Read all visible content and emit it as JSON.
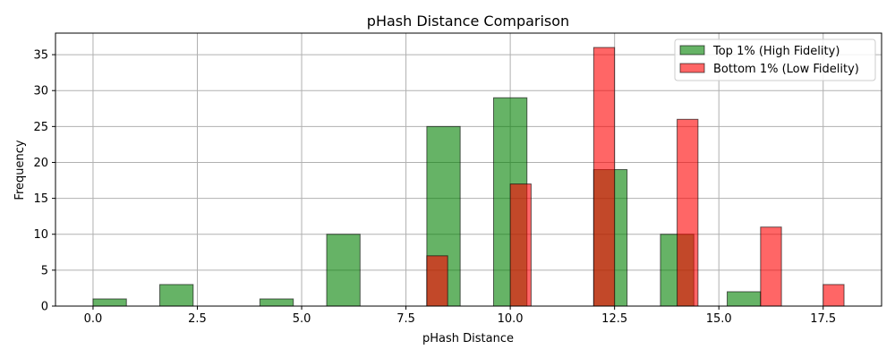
{
  "chart_data": {
    "type": "bar",
    "title": "pHash Distance Comparison",
    "xlabel": "pHash Distance",
    "ylabel": "Frequency",
    "xlim": [
      -0.9,
      18.9
    ],
    "ylim": [
      0,
      38
    ],
    "x_ticks": [
      0.0,
      2.5,
      5.0,
      7.5,
      10.0,
      12.5,
      15.0,
      17.5
    ],
    "x_tick_labels": [
      "0.0",
      "2.5",
      "5.0",
      "7.5",
      "10.0",
      "12.5",
      "15.0",
      "17.5"
    ],
    "y_ticks": [
      0,
      5,
      10,
      15,
      20,
      25,
      30,
      35
    ],
    "y_tick_labels": [
      "0",
      "5",
      "10",
      "15",
      "20",
      "25",
      "30",
      "35"
    ],
    "grid": true,
    "legend_position": "top-right",
    "series": [
      {
        "name": "Top 1% (High Fidelity)",
        "color": "#008000",
        "bin_width": 0.8,
        "bin_starts": [
          0,
          0.8,
          1.6,
          2.4,
          3.2,
          4.0,
          4.8,
          5.6,
          6.4,
          7.2,
          8.0,
          8.8,
          9.6,
          10.4,
          11.2,
          12.0,
          12.8,
          13.6,
          14.4,
          15.2
        ],
        "values": [
          1,
          0,
          3,
          0,
          0,
          1,
          0,
          10,
          0,
          0,
          25,
          0,
          29,
          0,
          0,
          19,
          0,
          10,
          0,
          2
        ]
      },
      {
        "name": "Bottom 1% (Low Fidelity)",
        "color": "#ff0000",
        "bin_width": 0.5,
        "bin_starts": [
          8.0,
          8.5,
          9.0,
          9.5,
          10.0,
          10.5,
          11.0,
          11.5,
          12.0,
          12.5,
          13.0,
          13.5,
          14.0,
          14.5,
          15.0,
          15.5,
          16.0,
          16.5,
          17.0,
          17.5
        ],
        "values": [
          7,
          0,
          0,
          0,
          17,
          0,
          0,
          0,
          36,
          0,
          0,
          0,
          26,
          0,
          0,
          0,
          11,
          0,
          0,
          3
        ]
      }
    ]
  }
}
